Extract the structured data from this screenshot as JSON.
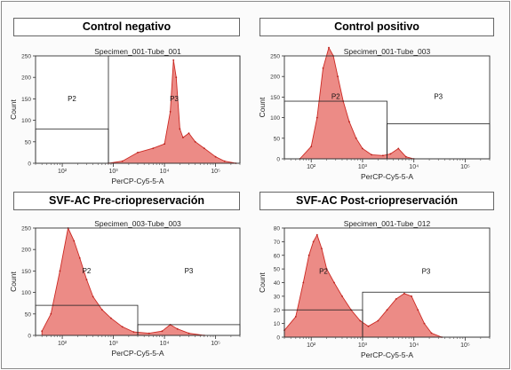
{
  "chart_data": [
    {
      "type": "area",
      "title": "Control negativo",
      "subtitle": "Specimen_001-Tube_001",
      "xlabel": "PerCP-Cy5-5-A",
      "ylabel": "Count",
      "xscale": "log",
      "xlim": [
        30,
        300000
      ],
      "ylim": [
        0,
        250
      ],
      "xticks": [
        "10²",
        "10³",
        "10⁴",
        "10⁵"
      ],
      "yticks": [
        "0",
        "50",
        "100",
        "150",
        "200",
        "250"
      ],
      "gates": [
        {
          "name": "P2",
          "x_range": [
            30,
            800
          ],
          "y_range": [
            0,
            80
          ]
        },
        {
          "name": "P3",
          "x_range": [
            800,
            300000
          ],
          "y_range": [
            0,
            250
          ]
        }
      ],
      "x": [
        800,
        1500,
        3000,
        6000,
        10000,
        13000,
        15000,
        17000,
        20000,
        23000,
        30000,
        40000,
        60000,
        100000,
        150000,
        250000
      ],
      "values": [
        0,
        5,
        25,
        35,
        45,
        120,
        240,
        200,
        80,
        60,
        70,
        50,
        35,
        15,
        5,
        0
      ]
    },
    {
      "type": "area",
      "title": "Control positivo",
      "subtitle": "Specimen_001-Tube_003",
      "xlabel": "PerCP-Cy5-5-A",
      "ylabel": "Count",
      "xscale": "log",
      "xlim": [
        30,
        300000
      ],
      "ylim": [
        0,
        250
      ],
      "xticks": [
        "10²",
        "10³",
        "10⁴",
        "10⁵"
      ],
      "yticks": [
        "0",
        "50",
        "100",
        "150",
        "200",
        "250"
      ],
      "gates": [
        {
          "name": "P2",
          "x_range": [
            30,
            3000
          ],
          "y_range": [
            0,
            140
          ]
        },
        {
          "name": "P3",
          "x_range": [
            3000,
            300000
          ],
          "y_range": [
            0,
            85
          ]
        }
      ],
      "x": [
        60,
        100,
        130,
        170,
        220,
        270,
        330,
        420,
        550,
        750,
        1000,
        1500,
        2500,
        3500,
        5000,
        7000,
        10000
      ],
      "values": [
        0,
        30,
        100,
        220,
        270,
        250,
        200,
        140,
        90,
        50,
        25,
        10,
        8,
        12,
        25,
        5,
        0
      ]
    },
    {
      "type": "area",
      "title": "SVF-AC Pre-criopreservación",
      "subtitle": "Specimen_003-Tube_003",
      "xlabel": "PerCP-Cy5-5-A",
      "ylabel": "Count",
      "xscale": "log",
      "xlim": [
        30,
        300000
      ],
      "ylim": [
        0,
        250
      ],
      "xticks": [
        "10²",
        "10³",
        "10⁴",
        "10⁵"
      ],
      "yticks": [
        "0",
        "50",
        "100",
        "150",
        "200",
        "250"
      ],
      "gates": [
        {
          "name": "P2",
          "x_range": [
            30,
            3000
          ],
          "y_range": [
            0,
            70
          ]
        },
        {
          "name": "P3",
          "x_range": [
            3000,
            300000
          ],
          "y_range": [
            0,
            25
          ]
        }
      ],
      "x": [
        40,
        60,
        90,
        130,
        170,
        220,
        300,
        400,
        600,
        900,
        1500,
        2500,
        5000,
        9000,
        13000,
        18000,
        30000,
        60000
      ],
      "values": [
        10,
        50,
        150,
        250,
        220,
        180,
        130,
        90,
        60,
        40,
        20,
        8,
        5,
        10,
        25,
        15,
        5,
        0
      ]
    },
    {
      "type": "area",
      "title": "SVF-AC Post-criopreservación",
      "subtitle": "Specimen_001-Tube_012",
      "xlabel": "PerCP-Cy5-5-A",
      "ylabel": "Count",
      "xscale": "log",
      "xlim": [
        30,
        300000
      ],
      "ylim": [
        0,
        80
      ],
      "xticks": [
        "10²",
        "10³",
        "10⁴",
        "10⁵"
      ],
      "yticks": [
        "0",
        "10",
        "20",
        "30",
        "40",
        "50",
        "60",
        "70",
        "80"
      ],
      "gates": [
        {
          "name": "P2",
          "x_range": [
            30,
            1000
          ],
          "y_range": [
            0,
            20
          ]
        },
        {
          "name": "P3",
          "x_range": [
            1000,
            300000
          ],
          "y_range": [
            0,
            33
          ]
        }
      ],
      "x": [
        30,
        50,
        70,
        90,
        110,
        130,
        160,
        200,
        280,
        400,
        600,
        900,
        1300,
        2000,
        3000,
        4500,
        6500,
        9000,
        12000,
        16000,
        22000,
        35000
      ],
      "values": [
        5,
        15,
        40,
        60,
        70,
        75,
        65,
        50,
        40,
        30,
        20,
        12,
        8,
        12,
        20,
        28,
        32,
        30,
        20,
        10,
        3,
        0
      ]
    }
  ]
}
